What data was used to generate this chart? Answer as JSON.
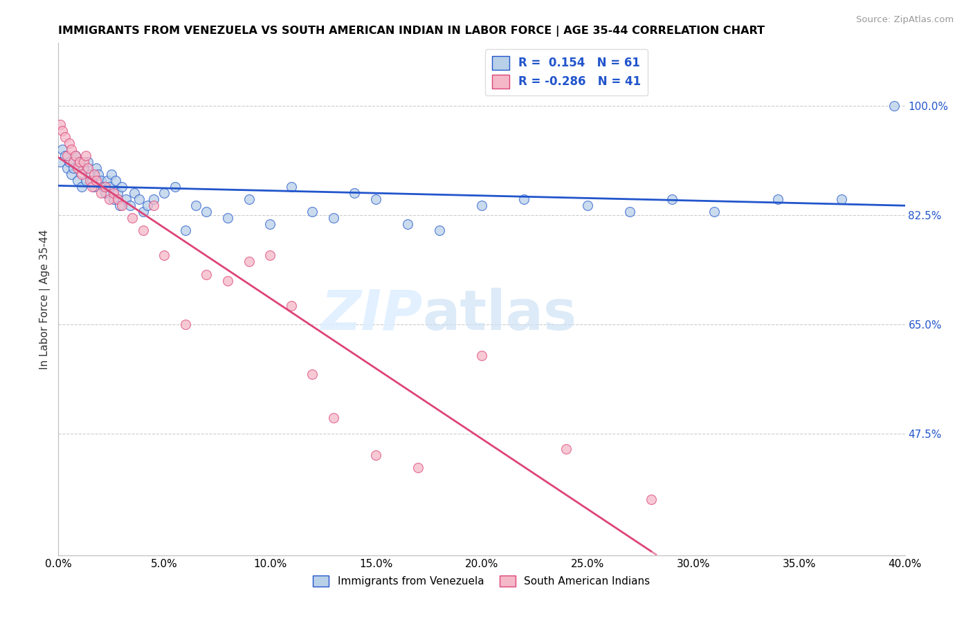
{
  "title": "IMMIGRANTS FROM VENEZUELA VS SOUTH AMERICAN INDIAN IN LABOR FORCE | AGE 35-44 CORRELATION CHART",
  "source": "Source: ZipAtlas.com",
  "ylabel": "In Labor Force | Age 35-44",
  "yticks": [
    0.475,
    0.65,
    0.825,
    1.0
  ],
  "ytick_labels": [
    "47.5%",
    "65.0%",
    "82.5%",
    "100.0%"
  ],
  "xmin": 0.0,
  "xmax": 0.4,
  "ymin": 0.28,
  "ymax": 1.1,
  "blue_R": 0.154,
  "blue_N": 61,
  "pink_R": -0.286,
  "pink_N": 41,
  "blue_color": "#b8d0e8",
  "blue_line_color": "#2255cc",
  "pink_color": "#f4b8c8",
  "pink_line_color": "#dd4477",
  "legend_label_blue": "Immigrants from Venezuela",
  "legend_label_pink": "South American Indians",
  "blue_scatter_x": [
    0.001,
    0.002,
    0.003,
    0.004,
    0.005,
    0.006,
    0.007,
    0.008,
    0.009,
    0.01,
    0.011,
    0.012,
    0.013,
    0.014,
    0.015,
    0.016,
    0.017,
    0.018,
    0.019,
    0.02,
    0.021,
    0.022,
    0.023,
    0.024,
    0.025,
    0.026,
    0.027,
    0.028,
    0.029,
    0.03,
    0.032,
    0.034,
    0.036,
    0.038,
    0.04,
    0.042,
    0.045,
    0.05,
    0.055,
    0.06,
    0.065,
    0.07,
    0.08,
    0.09,
    0.1,
    0.11,
    0.12,
    0.13,
    0.14,
    0.15,
    0.165,
    0.18,
    0.2,
    0.22,
    0.25,
    0.27,
    0.29,
    0.31,
    0.34,
    0.37,
    0.395
  ],
  "blue_scatter_y": [
    0.91,
    0.93,
    0.92,
    0.9,
    0.91,
    0.89,
    0.9,
    0.92,
    0.88,
    0.91,
    0.87,
    0.9,
    0.88,
    0.91,
    0.89,
    0.88,
    0.87,
    0.9,
    0.89,
    0.88,
    0.87,
    0.86,
    0.88,
    0.87,
    0.89,
    0.85,
    0.88,
    0.86,
    0.84,
    0.87,
    0.85,
    0.84,
    0.86,
    0.85,
    0.83,
    0.84,
    0.85,
    0.86,
    0.87,
    0.8,
    0.84,
    0.83,
    0.82,
    0.85,
    0.81,
    0.87,
    0.83,
    0.82,
    0.86,
    0.85,
    0.81,
    0.8,
    0.84,
    0.85,
    0.84,
    0.83,
    0.85,
    0.83,
    0.85,
    0.85,
    1.0
  ],
  "pink_scatter_x": [
    0.001,
    0.002,
    0.003,
    0.004,
    0.005,
    0.006,
    0.007,
    0.008,
    0.009,
    0.01,
    0.011,
    0.012,
    0.013,
    0.014,
    0.015,
    0.016,
    0.017,
    0.018,
    0.02,
    0.022,
    0.024,
    0.026,
    0.028,
    0.03,
    0.035,
    0.04,
    0.045,
    0.05,
    0.06,
    0.07,
    0.08,
    0.09,
    0.1,
    0.11,
    0.12,
    0.13,
    0.15,
    0.17,
    0.2,
    0.24,
    0.28
  ],
  "pink_scatter_y": [
    0.97,
    0.96,
    0.95,
    0.92,
    0.94,
    0.93,
    0.91,
    0.92,
    0.9,
    0.91,
    0.89,
    0.91,
    0.92,
    0.9,
    0.88,
    0.87,
    0.89,
    0.88,
    0.86,
    0.87,
    0.85,
    0.86,
    0.85,
    0.84,
    0.82,
    0.8,
    0.84,
    0.76,
    0.65,
    0.73,
    0.72,
    0.75,
    0.76,
    0.68,
    0.57,
    0.5,
    0.44,
    0.42,
    0.6,
    0.45,
    0.37
  ]
}
